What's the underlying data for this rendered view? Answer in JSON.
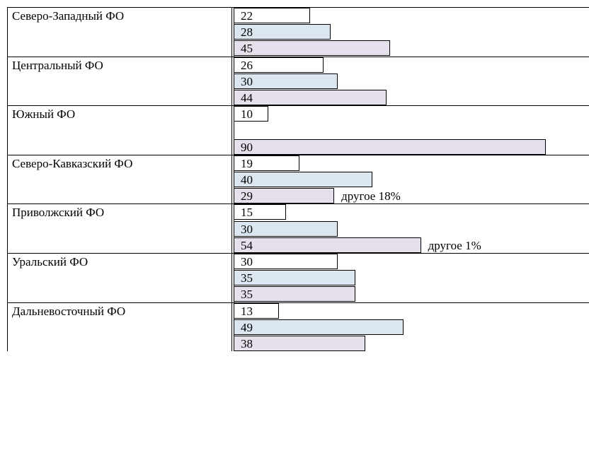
{
  "colors": {
    "series_1": "#ffffff",
    "series_2": "#dce6f1",
    "series_3": "#e6e0ec",
    "border": "#000000"
  },
  "chart_data": {
    "type": "bar",
    "orientation": "horizontal",
    "categories": [
      "Северо-Западный ФО",
      "Центральный ФО",
      "Южный ФО",
      "Северо-Кавказский ФО",
      "Приволжский ФО",
      "Уральский ФО",
      "Дальневосточный ФО"
    ],
    "series": [
      {
        "values": [
          22,
          26,
          10,
          19,
          15,
          30,
          13
        ],
        "color": "#ffffff"
      },
      {
        "values": [
          28,
          30,
          null,
          40,
          30,
          35,
          49
        ],
        "color": "#dce6f1"
      },
      {
        "values": [
          45,
          44,
          90,
          29,
          54,
          35,
          38
        ],
        "color": "#e6e0ec"
      }
    ],
    "annotations": [
      {
        "category_index": 3,
        "series_index": 2,
        "text": "другое 18%"
      },
      {
        "category_index": 4,
        "series_index": 2,
        "text": "другое 1%"
      }
    ],
    "xlim": [
      0,
      90
    ],
    "grid": false,
    "legend": "none"
  }
}
